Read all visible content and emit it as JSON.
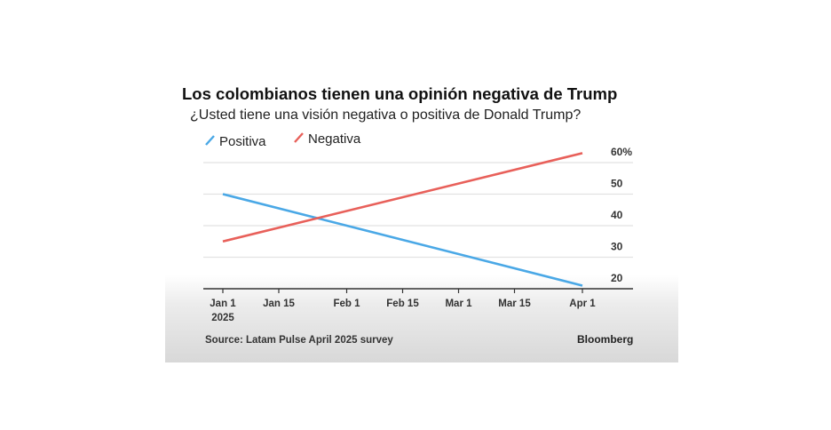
{
  "chart_data": {
    "type": "line",
    "title": "Los colombianos tienen una opinión negativa de Trump",
    "subtitle": "¿Usted tiene una visión negativa o positiva de Donald Trump?",
    "x": [
      "2025-01-01",
      "2025-04-01"
    ],
    "x_tick_labels": [
      {
        "date": "2025-01-01",
        "label": "Jan 1",
        "sublabel": "2025"
      },
      {
        "date": "2025-01-15",
        "label": "Jan 15"
      },
      {
        "date": "2025-02-01",
        "label": "Feb 1"
      },
      {
        "date": "2025-02-15",
        "label": "Feb 15"
      },
      {
        "date": "2025-03-01",
        "label": "Mar 1"
      },
      {
        "date": "2025-03-15",
        "label": "Mar 15"
      },
      {
        "date": "2025-04-01",
        "label": "Apr 1"
      }
    ],
    "y_ticks": [
      20,
      30,
      40,
      50,
      60
    ],
    "y_tick_labels": [
      "20",
      "30",
      "40",
      "50",
      "60%"
    ],
    "ylim": [
      20,
      63
    ],
    "grid": true,
    "legend_placement": "top-left",
    "series": [
      {
        "name": "Positiva",
        "color": "#4aa8e6",
        "values": [
          50,
          21
        ]
      },
      {
        "name": "Negativa",
        "color": "#e8605a",
        "values": [
          35,
          63
        ]
      }
    ],
    "source": "Source: Latam Pulse April 2025 survey",
    "brand": "Bloomberg"
  }
}
